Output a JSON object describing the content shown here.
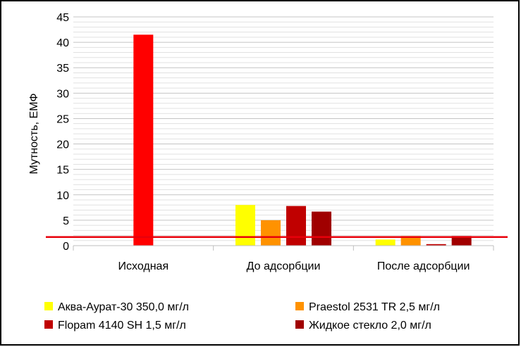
{
  "chart_data": {
    "type": "bar",
    "ylabel": "Мутность, ЕМФ",
    "categories": [
      "Исходная",
      "До адсорбции",
      "После адсорбции"
    ],
    "ylim": [
      0,
      45
    ],
    "y_ticks": [
      0,
      5,
      10,
      15,
      20,
      25,
      30,
      35,
      40,
      45
    ],
    "minor_grid_step": 1,
    "grid": true,
    "legend_position": "bottom",
    "series": [
      {
        "values": [
          41.5,
          null,
          null
        ],
        "color": "#ff0000"
      },
      {
        "name": "Аква-Аурат-30 350,0 мг/л",
        "values": [
          null,
          8.0,
          1.2
        ],
        "color": "#ffff00"
      },
      {
        "name": "Praestol 2531 TR 2,5 мг/л",
        "values": [
          null,
          5.0,
          1.9
        ],
        "color": "#ff9200"
      },
      {
        "name": "Flopam 4140 SH 1,5 мг/л",
        "values": [
          null,
          7.8,
          0.3
        ],
        "color": "#c00000"
      },
      {
        "name": "Жидкое стекло 2,0 мг/л",
        "values": [
          null,
          6.7,
          1.9
        ],
        "color": "#a00000"
      }
    ],
    "reference_line": {
      "y": 1.7,
      "color": "#e8000b"
    }
  }
}
